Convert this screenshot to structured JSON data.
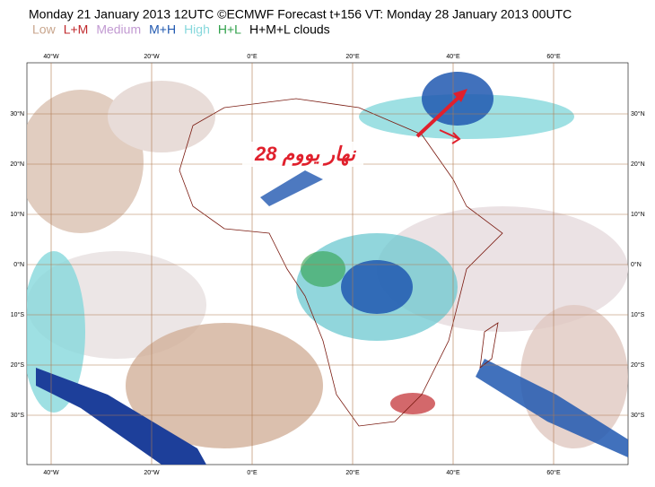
{
  "header": {
    "title": "Monday 21 January 2013 12UTC ©ECMWF Forecast t+156 VT: Monday 28 January 2013 00UTC",
    "legend": [
      {
        "label": "Low",
        "color": "#c8a58c"
      },
      {
        "label": "L+M",
        "color": "#c0282c"
      },
      {
        "label": "Medium",
        "color": "#c29ad2"
      },
      {
        "label": "M+H",
        "color": "#2058b0"
      },
      {
        "label": "High",
        "color": "#86d8dc"
      },
      {
        "label": "H+L",
        "color": "#2fa04a"
      },
      {
        "label": "H+M+L clouds",
        "color": "#000000"
      }
    ]
  },
  "map": {
    "longitudes": [
      "40°W",
      "20°W",
      "0°E",
      "20°E",
      "40°E",
      "60°E"
    ],
    "latitudes": [
      "30°N",
      "20°N",
      "10°N",
      "0°N",
      "10°S",
      "20°S",
      "30°S"
    ],
    "annotation": "نهار يووم 28"
  }
}
